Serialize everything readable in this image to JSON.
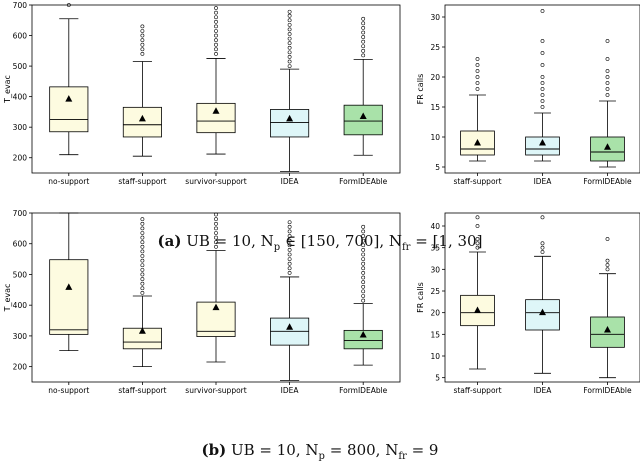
{
  "captions": {
    "a": {
      "label": "(a)",
      "text": "UB = 10, N",
      "p_sub": "p",
      "p_text": " ∈ [150, 700], N",
      "fr_sub": "fr",
      "fr_text": " = [1, 30]"
    },
    "b": {
      "label": "(b)",
      "text": "UB = 10, N",
      "p_sub": "p",
      "p_text": " = 800, N",
      "fr_sub": "fr",
      "fr_text": " = 9"
    }
  },
  "chart_data": [
    {
      "type": "box",
      "id": "a-evac",
      "ylabel": "T_evac",
      "ylim": [
        150,
        700
      ],
      "yticks": [
        200,
        300,
        400,
        500,
        600,
        700
      ],
      "categories": [
        "no-support",
        "staff-support",
        "survivor-support",
        "IDEA",
        "FormIDEAble"
      ],
      "colors": [
        "#fdfbe0",
        "#fdfbe0",
        "#fdfbe0",
        "#def6f8",
        "#a9e2a9"
      ],
      "boxes": [
        {
          "whislo": 210,
          "q1": 285,
          "med": 325,
          "q3": 432,
          "whishi": 655,
          "mean": 392,
          "fliers": [
            700
          ]
        },
        {
          "whislo": 205,
          "q1": 268,
          "med": 308,
          "q3": 365,
          "whishi": 515,
          "mean": 327,
          "fliers": [
            540,
            555,
            570,
            585,
            600,
            615,
            630
          ]
        },
        {
          "whislo": 212,
          "q1": 282,
          "med": 320,
          "q3": 378,
          "whishi": 525,
          "mean": 352,
          "fliers": [
            540,
            555,
            570,
            585,
            600,
            615,
            630,
            645,
            660,
            675,
            690
          ]
        },
        {
          "whislo": 155,
          "q1": 268,
          "med": 315,
          "q3": 358,
          "whishi": 490,
          "mean": 327,
          "fliers": [
            500,
            515,
            530,
            545,
            560,
            575,
            590,
            605,
            620,
            635,
            650,
            665,
            678
          ]
        },
        {
          "whislo": 208,
          "q1": 275,
          "med": 320,
          "q3": 372,
          "whishi": 522,
          "mean": 335,
          "fliers": [
            535,
            550,
            565,
            580,
            595,
            610,
            625,
            640,
            655
          ]
        }
      ]
    },
    {
      "type": "box",
      "id": "a-fr",
      "ylabel": "FR calls",
      "ylim": [
        4,
        32
      ],
      "yticks": [
        5,
        10,
        15,
        20,
        25,
        30
      ],
      "categories": [
        "staff-support",
        "IDEA",
        "FormIDEAble"
      ],
      "colors": [
        "#fdfbe0",
        "#def6f8",
        "#a9e2a9"
      ],
      "boxes": [
        {
          "whislo": 6,
          "q1": 7,
          "med": 8,
          "q3": 11,
          "whishi": 17,
          "mean": 9,
          "fliers": [
            18,
            19,
            20,
            21,
            22,
            23
          ]
        },
        {
          "whislo": 6,
          "q1": 7,
          "med": 8,
          "q3": 10,
          "whishi": 14,
          "mean": 9,
          "fliers": [
            15,
            16,
            17,
            18,
            19,
            20,
            22,
            24,
            26,
            31
          ]
        },
        {
          "whislo": 5,
          "q1": 6,
          "med": 7.5,
          "q3": 10,
          "whishi": 16,
          "mean": 8.3,
          "fliers": [
            17,
            18,
            19,
            20,
            21,
            23,
            26
          ]
        }
      ]
    },
    {
      "type": "box",
      "id": "b-evac",
      "ylabel": "T_evac",
      "ylim": [
        150,
        700
      ],
      "yticks": [
        200,
        300,
        400,
        500,
        600,
        700
      ],
      "categories": [
        "no-support",
        "staff-support",
        "survivor-support",
        "IDEA",
        "FormIDEAble"
      ],
      "colors": [
        "#fdfbe0",
        "#fdfbe0",
        "#fdfbe0",
        "#def6f8",
        "#a9e2a9"
      ],
      "boxes": [
        {
          "whislo": 252,
          "q1": 305,
          "med": 320,
          "q3": 548,
          "whishi": 700,
          "mean": 458,
          "fliers": []
        },
        {
          "whislo": 200,
          "q1": 258,
          "med": 280,
          "q3": 325,
          "whishi": 430,
          "mean": 315,
          "fliers": [
            440,
            455,
            470,
            485,
            500,
            515,
            530,
            545,
            560,
            575,
            590,
            605,
            620,
            635,
            650,
            665,
            680
          ]
        },
        {
          "whislo": 215,
          "q1": 298,
          "med": 315,
          "q3": 410,
          "whishi": 578,
          "mean": 392,
          "fliers": [
            590,
            605,
            620,
            635,
            650,
            665,
            680,
            695
          ]
        },
        {
          "whislo": 155,
          "q1": 270,
          "med": 315,
          "q3": 358,
          "whishi": 492,
          "mean": 328,
          "fliers": [
            505,
            520,
            535,
            550,
            565,
            580,
            595,
            610,
            625,
            640,
            655,
            670
          ]
        },
        {
          "whislo": 205,
          "q1": 258,
          "med": 285,
          "q3": 318,
          "whishi": 405,
          "mean": 303,
          "fliers": [
            415,
            430,
            445,
            460,
            475,
            490,
            505,
            520,
            535,
            550,
            565,
            580,
            595,
            610,
            625,
            640,
            655
          ]
        }
      ]
    },
    {
      "type": "box",
      "id": "b-fr",
      "ylabel": "FR calls",
      "ylim": [
        4,
        43
      ],
      "yticks": [
        5,
        10,
        15,
        20,
        25,
        30,
        35,
        40
      ],
      "categories": [
        "staff-support",
        "IDEA",
        "FormIDEAble"
      ],
      "colors": [
        "#fdfbe0",
        "#def6f8",
        "#a9e2a9"
      ],
      "boxes": [
        {
          "whislo": 7,
          "q1": 17,
          "med": 20,
          "q3": 24,
          "whishi": 34,
          "mean": 20.5,
          "fliers": [
            35,
            36,
            37,
            40,
            42
          ]
        },
        {
          "whislo": 6,
          "q1": 16,
          "med": 20,
          "q3": 23,
          "whishi": 33,
          "mean": 20,
          "fliers": [
            34,
            35,
            36,
            42
          ]
        },
        {
          "whislo": 5,
          "q1": 12,
          "med": 15,
          "q3": 19,
          "whishi": 29,
          "mean": 16,
          "fliers": [
            30,
            31,
            32,
            37
          ]
        }
      ]
    }
  ]
}
